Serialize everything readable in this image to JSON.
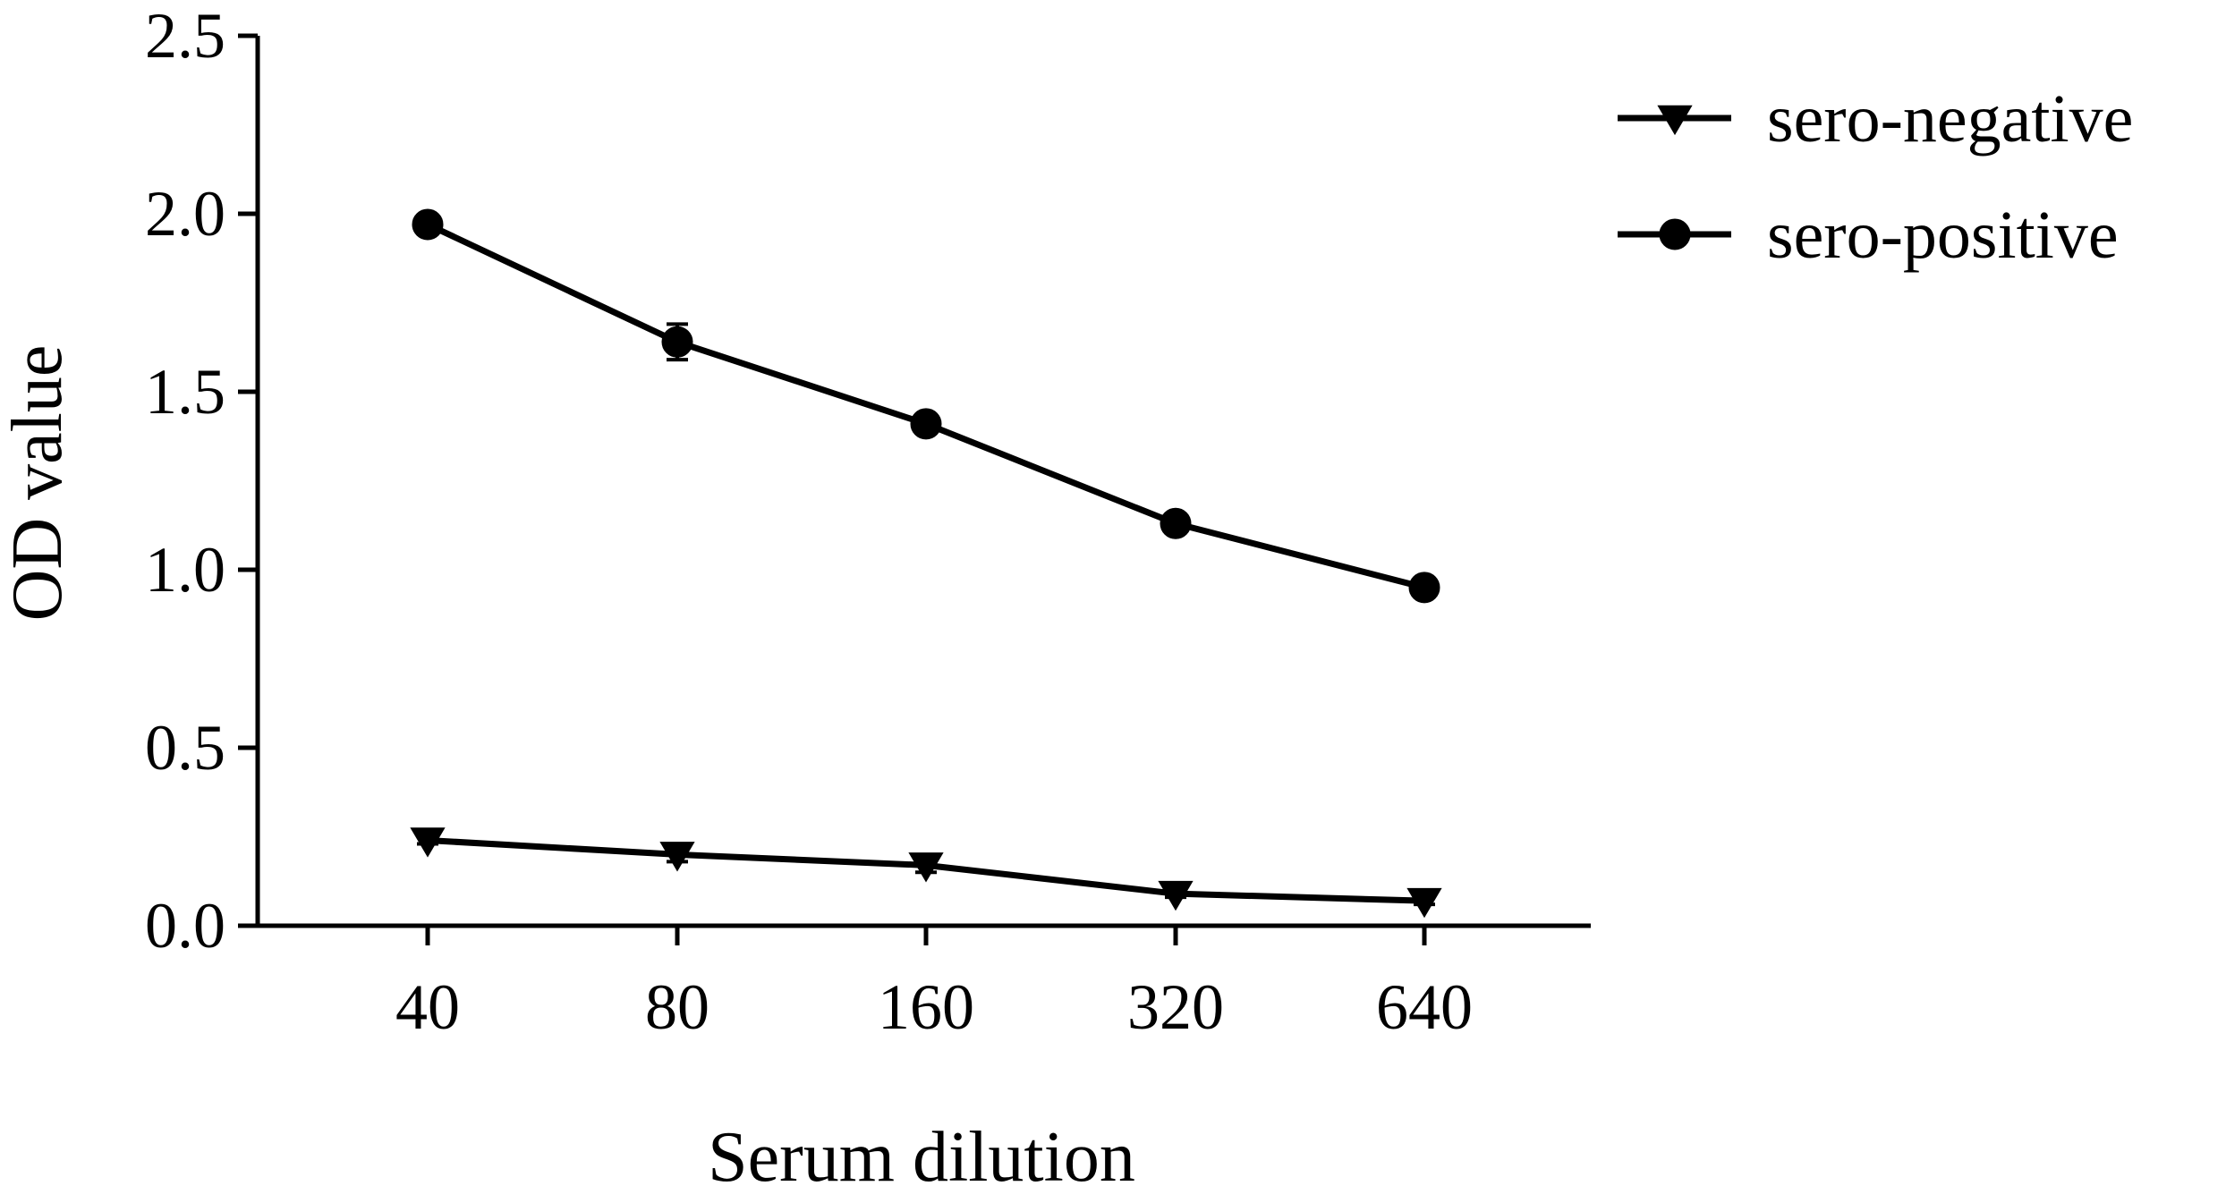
{
  "chart_data": {
    "type": "line",
    "xlabel": "Serum dilution",
    "ylabel": "OD value",
    "categories": [
      "40",
      "80",
      "160",
      "320",
      "640"
    ],
    "ylim": [
      0,
      2.5
    ],
    "yticks": [
      "0.0",
      "0.5",
      "1.0",
      "1.5",
      "2.0",
      "2.5"
    ],
    "grid": false,
    "legend_position": "top-right",
    "series": [
      {
        "name": "sero-negative",
        "marker": "triangle-down",
        "color": "#000000",
        "values": [
          0.24,
          0.2,
          0.17,
          0.09,
          0.07
        ],
        "errors": [
          0.01,
          0.02,
          0.02,
          0.01,
          0.01
        ]
      },
      {
        "name": "sero-positive",
        "marker": "circle",
        "color": "#000000",
        "values": [
          1.97,
          1.64,
          1.41,
          1.13,
          0.95
        ],
        "errors": [
          0.02,
          0.05,
          0.02,
          0.02,
          0.02
        ]
      }
    ]
  }
}
